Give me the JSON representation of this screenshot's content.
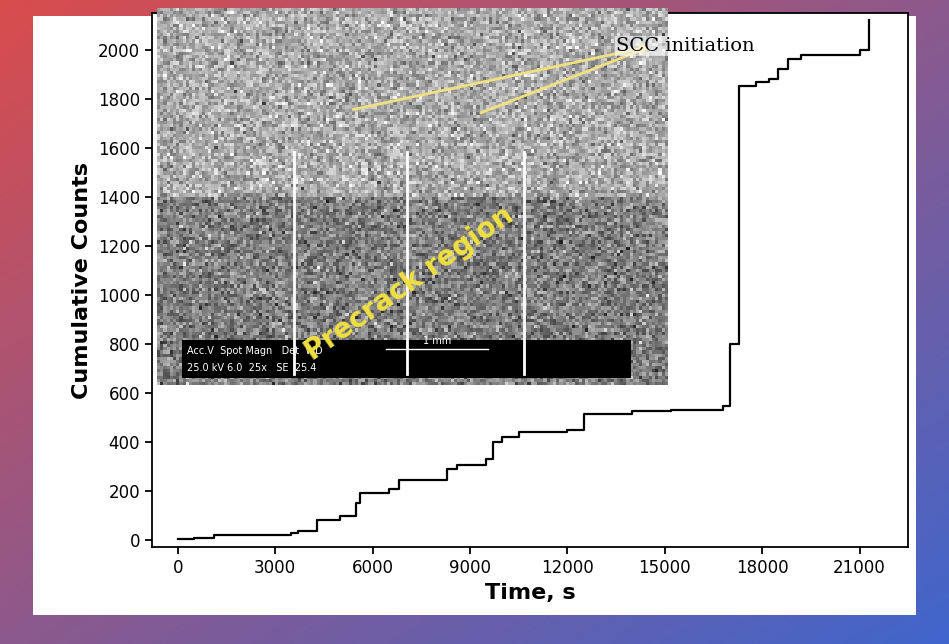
{
  "chart_data": {
    "type": "line",
    "x_label": "Time, s",
    "y_label": "Cumulative Counts",
    "x": [
      0,
      500,
      1100,
      3500,
      3700,
      4300,
      5000,
      5500,
      5600,
      6500,
      6800,
      8300,
      8600,
      9500,
      9700,
      10000,
      10500,
      12000,
      12500,
      14000,
      15200,
      16800,
      17000,
      17300,
      17800,
      18200,
      18500,
      18800,
      19200,
      21000,
      21300
    ],
    "values": [
      5,
      10,
      20,
      30,
      35,
      80,
      100,
      150,
      190,
      210,
      245,
      290,
      305,
      330,
      400,
      420,
      440,
      450,
      515,
      525,
      530,
      545,
      800,
      1850,
      1870,
      1880,
      1920,
      1960,
      1980,
      2000,
      2120
    ],
    "color": "#000000",
    "line_style": "steps",
    "xlim": [
      -800,
      22500
    ],
    "ylim": [
      -30,
      2150
    ],
    "xticks": [
      0,
      3000,
      6000,
      9000,
      12000,
      15000,
      18000,
      21000
    ],
    "yticks": [
      0,
      200,
      400,
      600,
      800,
      1000,
      1200,
      1400,
      1600,
      1800,
      2000
    ],
    "grid": false,
    "annotations": [
      "SCC initiation",
      "Precrack region",
      "Acc.V  Spot Magn   Det  WD",
      "1 mm",
      "25.0 kV 6.0  25x   SE  25.4"
    ]
  }
}
